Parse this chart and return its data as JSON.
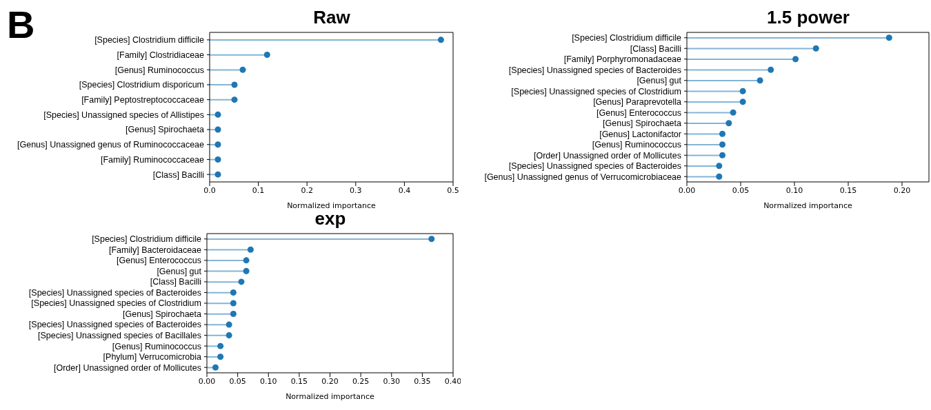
{
  "chart_data": [
    {
      "type": "lollipop",
      "orientation": "horizontal",
      "title": "Raw",
      "xlabel": "Normalized importance",
      "annotations": [
        "B"
      ],
      "categories": [
        "[Species] Clostridium difficile",
        "[Family] Clostridiaceae",
        "[Genus] Ruminococcus",
        "[Species] Clostridium disporicum",
        "[Family] Peptostreptococcaceae",
        "[Species] Unassigned species of Allistipes",
        "[Genus] Spirochaeta",
        "[Genus] Unassigned genus of Ruminococcaceae",
        "[Family] Ruminococcaceae",
        "[Class] Bacilli"
      ],
      "values": [
        0.475,
        0.118,
        0.068,
        0.051,
        0.051,
        0.017,
        0.017,
        0.017,
        0.017,
        0.017
      ],
      "color": "#1f77b4",
      "xlim": [
        0,
        0.5
      ],
      "xticks": [
        {
          "value": 0,
          "label": "0.0"
        },
        0.1,
        0.2,
        0.3,
        0.4,
        0.5
      ],
      "grid": false,
      "legend": false,
      "marker": "circle"
    },
    {
      "type": "lollipop",
      "orientation": "horizontal",
      "title": "1.5 power",
      "xlabel": "Normalized importance",
      "categories": [
        "[Species] Clostridium difficile",
        "[Class] Bacilli",
        "[Family] Porphyromonadaceae",
        "[Species] Unassigned species of Bacteroides",
        "[Genus] gut",
        "[Species] Unassigned species of Clostridium",
        "[Genus] Paraprevotella",
        "[Genus] Enterococcus",
        "[Genus] Spirochaeta",
        "[Genus] Lactonifactor",
        "[Genus] Ruminococcus",
        "[Order] Unassigned order of Mollicutes",
        "[Species] Unassigned species of Bacteroides",
        "[Genus] Unassigned genus of Verrucomicrobiaceae"
      ],
      "values": [
        0.188,
        0.12,
        0.101,
        0.078,
        0.068,
        0.052,
        0.052,
        0.043,
        0.039,
        0.033,
        0.033,
        0.033,
        0.03,
        0.03
      ],
      "color": "#1f77b4",
      "xlim": [
        0,
        0.225
      ],
      "xticks": [
        {
          "value": 0,
          "label": "0.00"
        },
        0.05,
        {
          "value": 0.1,
          "label": "0.10"
        },
        0.15,
        {
          "value": 0.2,
          "label": "0.20"
        }
      ],
      "grid": false,
      "legend": false,
      "marker": "circle"
    },
    {
      "type": "lollipop",
      "orientation": "horizontal",
      "title": "exp",
      "xlabel": "Normalized importance",
      "categories": [
        "[Species] Clostridium difficile",
        "[Family] Bacteroidaceae",
        "[Genus] Enterococcus",
        "[Genus] gut",
        "[Class] Bacilli",
        "[Species] Unassigned species of Bacteroides",
        "[Species] Unassigned species of Clostridium",
        "[Genus] Spirochaeta",
        "[Species] Unassigned species of Bacteroides",
        "[Species] Unassigned species of Bacillales",
        "[Genus] Ruminococcus",
        "[Phylum] Verrucomicrobia",
        "[Order] Unassigned order of Mollicutes"
      ],
      "values": [
        0.365,
        0.071,
        0.064,
        0.064,
        0.056,
        0.043,
        0.043,
        0.043,
        0.036,
        0.036,
        0.022,
        0.022,
        0.014
      ],
      "color": "#1f77b4",
      "xlim": [
        0,
        0.4
      ],
      "xticks": [
        {
          "value": 0,
          "label": "0.00"
        },
        0.05,
        {
          "value": 0.1,
          "label": "0.10"
        },
        0.15,
        {
          "value": 0.2,
          "label": "0.20"
        },
        0.25,
        {
          "value": 0.3,
          "label": "0.30"
        },
        0.35,
        {
          "value": 0.4,
          "label": "0.40"
        }
      ],
      "grid": false,
      "legend": false,
      "marker": "circle"
    }
  ]
}
